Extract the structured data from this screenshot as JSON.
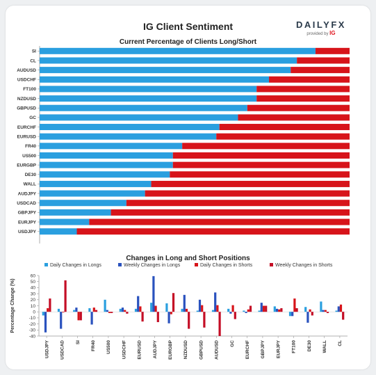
{
  "header": {
    "title": "IG Client Sentiment",
    "logo_text": "DAILYFX",
    "logo_sub": "provided by",
    "logo_brand": "IG"
  },
  "colors": {
    "long": "#2a9fdf",
    "short": "#d7141a",
    "weekly_long": "#2a52be",
    "weekly_short": "#c40e26"
  },
  "chart_data": [
    {
      "type": "bar",
      "orientation": "horizontal",
      "stacked": true,
      "title": "Current Percentage of Clients Long/Short",
      "categories": [
        "SI",
        "CL",
        "AUDUSD",
        "USDCHF",
        "FT100",
        "NZDUSD",
        "GBPUSD",
        "GC",
        "EURCHF",
        "EURUSD",
        "FR40",
        "US500",
        "EURGBP",
        "DE30",
        "WALL",
        "AUDJPY",
        "USDCAD",
        "GBPJPY",
        "EURJPY",
        "USDJPY"
      ],
      "series": [
        {
          "name": "Long",
          "values": [
            89,
            83,
            81,
            74,
            70,
            70,
            67,
            64,
            58,
            57,
            46,
            43,
            43,
            42,
            36,
            34,
            28,
            23,
            16,
            12
          ]
        },
        {
          "name": "Short",
          "values": [
            11,
            17,
            19,
            26,
            30,
            30,
            33,
            36,
            42,
            43,
            54,
            57,
            57,
            58,
            64,
            66,
            72,
            77,
            84,
            88
          ]
        }
      ],
      "xlim": [
        0,
        100
      ]
    },
    {
      "type": "bar",
      "title": "Changes in Long and Short Positions",
      "ylabel": "Percentage Change (%)",
      "ylim": [
        -40,
        60
      ],
      "yticks": [
        60,
        50,
        40,
        30,
        20,
        10,
        0,
        -10,
        -20,
        -30,
        -40
      ],
      "categories": [
        "USDJPY",
        "USDCAD",
        "SI",
        "FR40",
        "US500",
        "USDCHF",
        "EURUSD",
        "AUDJPY",
        "EURGBP",
        "NZDUSD",
        "GBPUSD",
        "AUDUSD",
        "GC",
        "EURCHF",
        "GBPJPY",
        "EURJPY",
        "FT100",
        "DE30",
        "WALL",
        "CL"
      ],
      "series": [
        {
          "name": "Daily Changes in Longs",
          "values": [
            -6,
            5,
            3,
            6,
            20,
            5,
            5,
            15,
            14,
            5,
            2,
            3,
            5,
            2,
            2,
            9,
            -7,
            8,
            17,
            2
          ]
        },
        {
          "name": "Weekly Changes in Longs",
          "values": [
            -34,
            -28,
            7,
            -21,
            3,
            7,
            26,
            59,
            -19,
            28,
            20,
            32,
            -3,
            -2,
            15,
            5,
            -7,
            -18,
            3,
            9
          ]
        },
        {
          "name": "Daily Changes in Shorts",
          "values": [
            6,
            -1,
            -14,
            7,
            -2,
            3,
            9,
            10,
            -4,
            5,
            11,
            11,
            11,
            4,
            10,
            4,
            22,
            4,
            3,
            12
          ]
        },
        {
          "name": "Weekly Changes in Shorts",
          "values": [
            22,
            52,
            -14,
            3,
            -2,
            -3,
            -16,
            -17,
            31,
            -28,
            -26,
            -40,
            -12,
            10,
            10,
            6,
            6,
            -6,
            -2,
            -13
          ]
        }
      ]
    }
  ]
}
